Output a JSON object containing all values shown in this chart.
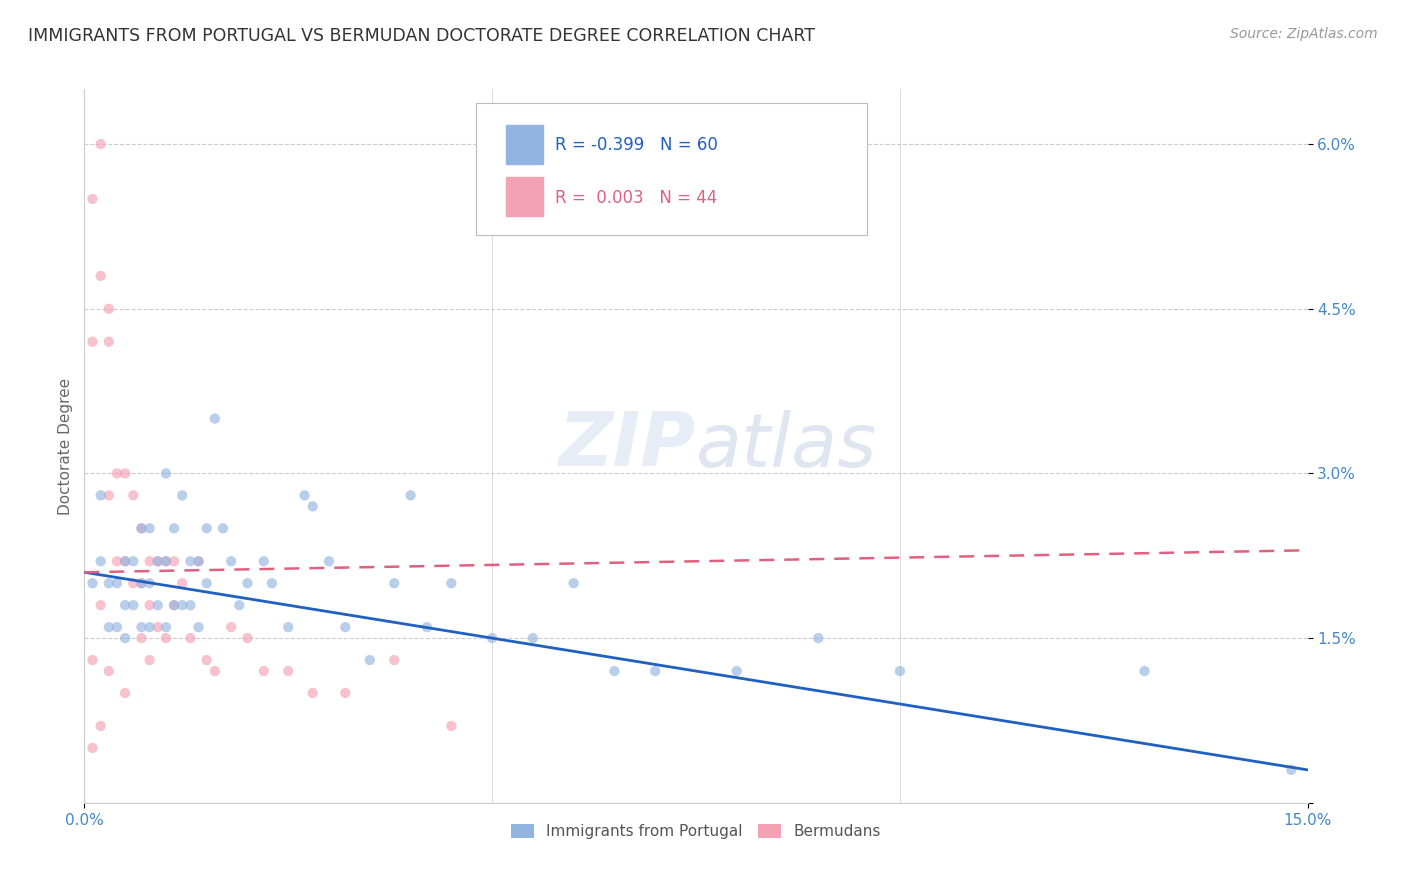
{
  "title": "IMMIGRANTS FROM PORTUGAL VS BERMUDAN DOCTORATE DEGREE CORRELATION CHART",
  "source": "Source: ZipAtlas.com",
  "ylabel": "Doctorate Degree",
  "legend_blue_label": "Immigrants from Portugal",
  "legend_pink_label": "Bermudans",
  "legend_blue_r": "R = -0.399",
  "legend_blue_n": "N = 60",
  "legend_pink_r": "R =  0.003",
  "legend_pink_n": "N = 44",
  "xmin": 0.0,
  "xmax": 0.15,
  "ymin": 0.0,
  "ymax": 0.065,
  "yticks": [
    0.0,
    0.015,
    0.03,
    0.045,
    0.06
  ],
  "ytick_labels": [
    "",
    "1.5%",
    "3.0%",
    "4.5%",
    "6.0%"
  ],
  "xticks": [
    0.0,
    0.15
  ],
  "xtick_labels": [
    "0.0%",
    "15.0%"
  ],
  "blue_color": "#92b4e0",
  "pink_color": "#f4a0b5",
  "blue_line_color": "#2060c0",
  "pink_line_color": "#e06080",
  "watermark_zip": "ZIP",
  "watermark_atlas": "atlas",
  "blue_scatter_x": [
    0.001,
    0.002,
    0.002,
    0.003,
    0.003,
    0.004,
    0.004,
    0.005,
    0.005,
    0.005,
    0.006,
    0.006,
    0.007,
    0.007,
    0.007,
    0.008,
    0.008,
    0.008,
    0.009,
    0.009,
    0.01,
    0.01,
    0.01,
    0.011,
    0.011,
    0.012,
    0.012,
    0.013,
    0.013,
    0.014,
    0.014,
    0.015,
    0.015,
    0.016,
    0.017,
    0.018,
    0.019,
    0.02,
    0.022,
    0.023,
    0.025,
    0.027,
    0.028,
    0.03,
    0.032,
    0.035,
    0.038,
    0.04,
    0.042,
    0.045,
    0.05,
    0.055,
    0.06,
    0.065,
    0.07,
    0.08,
    0.09,
    0.1,
    0.13,
    0.148
  ],
  "blue_scatter_y": [
    0.02,
    0.028,
    0.022,
    0.02,
    0.016,
    0.02,
    0.016,
    0.022,
    0.018,
    0.015,
    0.022,
    0.018,
    0.025,
    0.02,
    0.016,
    0.025,
    0.02,
    0.016,
    0.022,
    0.018,
    0.03,
    0.022,
    0.016,
    0.025,
    0.018,
    0.028,
    0.018,
    0.022,
    0.018,
    0.022,
    0.016,
    0.025,
    0.02,
    0.035,
    0.025,
    0.022,
    0.018,
    0.02,
    0.022,
    0.02,
    0.016,
    0.028,
    0.027,
    0.022,
    0.016,
    0.013,
    0.02,
    0.028,
    0.016,
    0.02,
    0.015,
    0.015,
    0.02,
    0.012,
    0.012,
    0.012,
    0.015,
    0.012,
    0.012,
    0.003
  ],
  "pink_scatter_x": [
    0.001,
    0.001,
    0.001,
    0.001,
    0.002,
    0.002,
    0.002,
    0.002,
    0.003,
    0.003,
    0.003,
    0.003,
    0.004,
    0.004,
    0.005,
    0.005,
    0.005,
    0.006,
    0.006,
    0.007,
    0.007,
    0.007,
    0.008,
    0.008,
    0.008,
    0.009,
    0.009,
    0.01,
    0.01,
    0.011,
    0.011,
    0.012,
    0.013,
    0.014,
    0.015,
    0.016,
    0.018,
    0.02,
    0.022,
    0.025,
    0.028,
    0.032,
    0.038,
    0.045
  ],
  "pink_scatter_y": [
    0.055,
    0.042,
    0.013,
    0.005,
    0.06,
    0.048,
    0.018,
    0.007,
    0.045,
    0.042,
    0.028,
    0.012,
    0.03,
    0.022,
    0.03,
    0.022,
    0.01,
    0.028,
    0.02,
    0.025,
    0.02,
    0.015,
    0.022,
    0.018,
    0.013,
    0.022,
    0.016,
    0.022,
    0.015,
    0.022,
    0.018,
    0.02,
    0.015,
    0.022,
    0.013,
    0.012,
    0.016,
    0.015,
    0.012,
    0.012,
    0.01,
    0.01,
    0.013,
    0.007
  ],
  "blue_line_x0": 0.0,
  "blue_line_x1": 0.15,
  "blue_line_y0": 0.021,
  "blue_line_y1": 0.003,
  "pink_line_x0": 0.0,
  "pink_line_x1": 0.15,
  "pink_line_y0": 0.021,
  "pink_line_y1": 0.023,
  "background_color": "#ffffff",
  "title_color": "#333333",
  "axis_label_color": "#666666",
  "tick_color": "#4488cc",
  "grid_color": "#cccccc",
  "title_fontsize": 12.5,
  "axis_label_fontsize": 11,
  "tick_fontsize": 11,
  "source_fontsize": 10,
  "scatter_size": 55,
  "scatter_alpha": 0.65,
  "scatter_linewidth": 0.5
}
